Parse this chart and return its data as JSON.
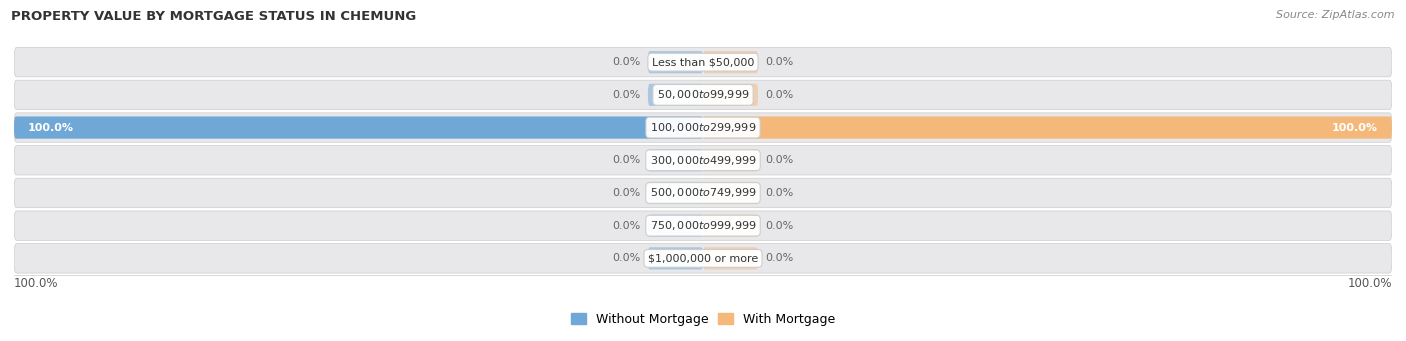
{
  "title": "PROPERTY VALUE BY MORTGAGE STATUS IN CHEMUNG",
  "source": "Source: ZipAtlas.com",
  "categories": [
    "Less than $50,000",
    "$50,000 to $99,999",
    "$100,000 to $299,999",
    "$300,000 to $499,999",
    "$500,000 to $749,999",
    "$750,000 to $999,999",
    "$1,000,000 or more"
  ],
  "without_mortgage": [
    0.0,
    0.0,
    100.0,
    0.0,
    0.0,
    0.0,
    0.0
  ],
  "with_mortgage": [
    0.0,
    0.0,
    100.0,
    0.0,
    0.0,
    0.0,
    0.0
  ],
  "without_mortgage_color": "#6fa8d6",
  "with_mortgage_color": "#f4b87a",
  "row_bg_color": "#e8e8ea",
  "label_color_dark": "#666666",
  "label_color_white": "#ffffff",
  "xlim": [
    -100,
    100
  ],
  "figsize": [
    14.06,
    3.41
  ],
  "dpi": 100
}
